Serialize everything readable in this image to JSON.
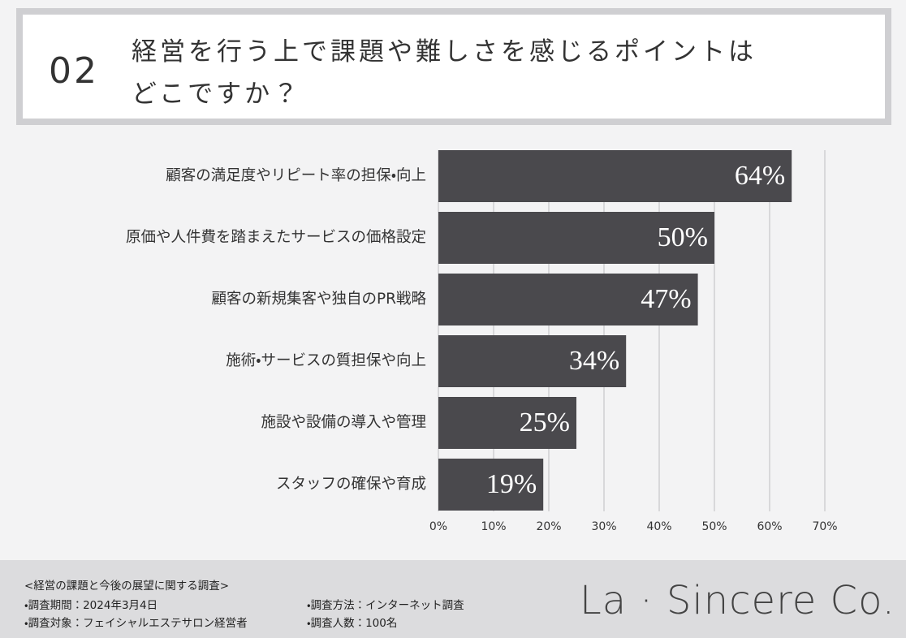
{
  "header": {
    "number": "02",
    "title_lines": [
      "経営を行う上で課題や難しさを感じるポイントは",
      "どこですか？"
    ]
  },
  "chart_data": {
    "type": "bar",
    "orientation": "horizontal",
    "categories": [
      "顧客の満足度やリピート率の担保・向上",
      "原価や人件費を踏まえたサービスの価格設定",
      "顧客の新規集客や独自のPR戦略",
      "施術・サービスの質担保や向上",
      "施設や設備の導入や管理",
      "スタッフの確保や育成"
    ],
    "values": [
      64,
      50,
      47,
      34,
      25,
      19
    ],
    "value_labels": [
      "64%",
      "50%",
      "47%",
      "34%",
      "25%",
      "19%"
    ],
    "color": "#4a494d",
    "xlim": [
      0,
      70
    ],
    "xticks": [
      {
        "value": 0,
        "label": "0%"
      },
      {
        "value": 10,
        "label": "10%"
      },
      {
        "value": 20,
        "label": "20%"
      },
      {
        "value": 30,
        "label": "30%"
      },
      {
        "value": 40,
        "label": "40%"
      },
      {
        "value": 50,
        "label": "50%"
      },
      {
        "value": 60,
        "label": "60%"
      },
      {
        "value": 70,
        "label": "70%"
      }
    ],
    "grid": true
  },
  "footer": {
    "survey_title": "<経営の課題と今後の展望に関する調査>",
    "items": [
      "・調査期間：2024年3月4日",
      "・調査方法：インターネット調査",
      "・調査対象：フェイシャルエステサロン経営者",
      "・調査人数：100名"
    ],
    "logo": "La · Sincere Co."
  }
}
